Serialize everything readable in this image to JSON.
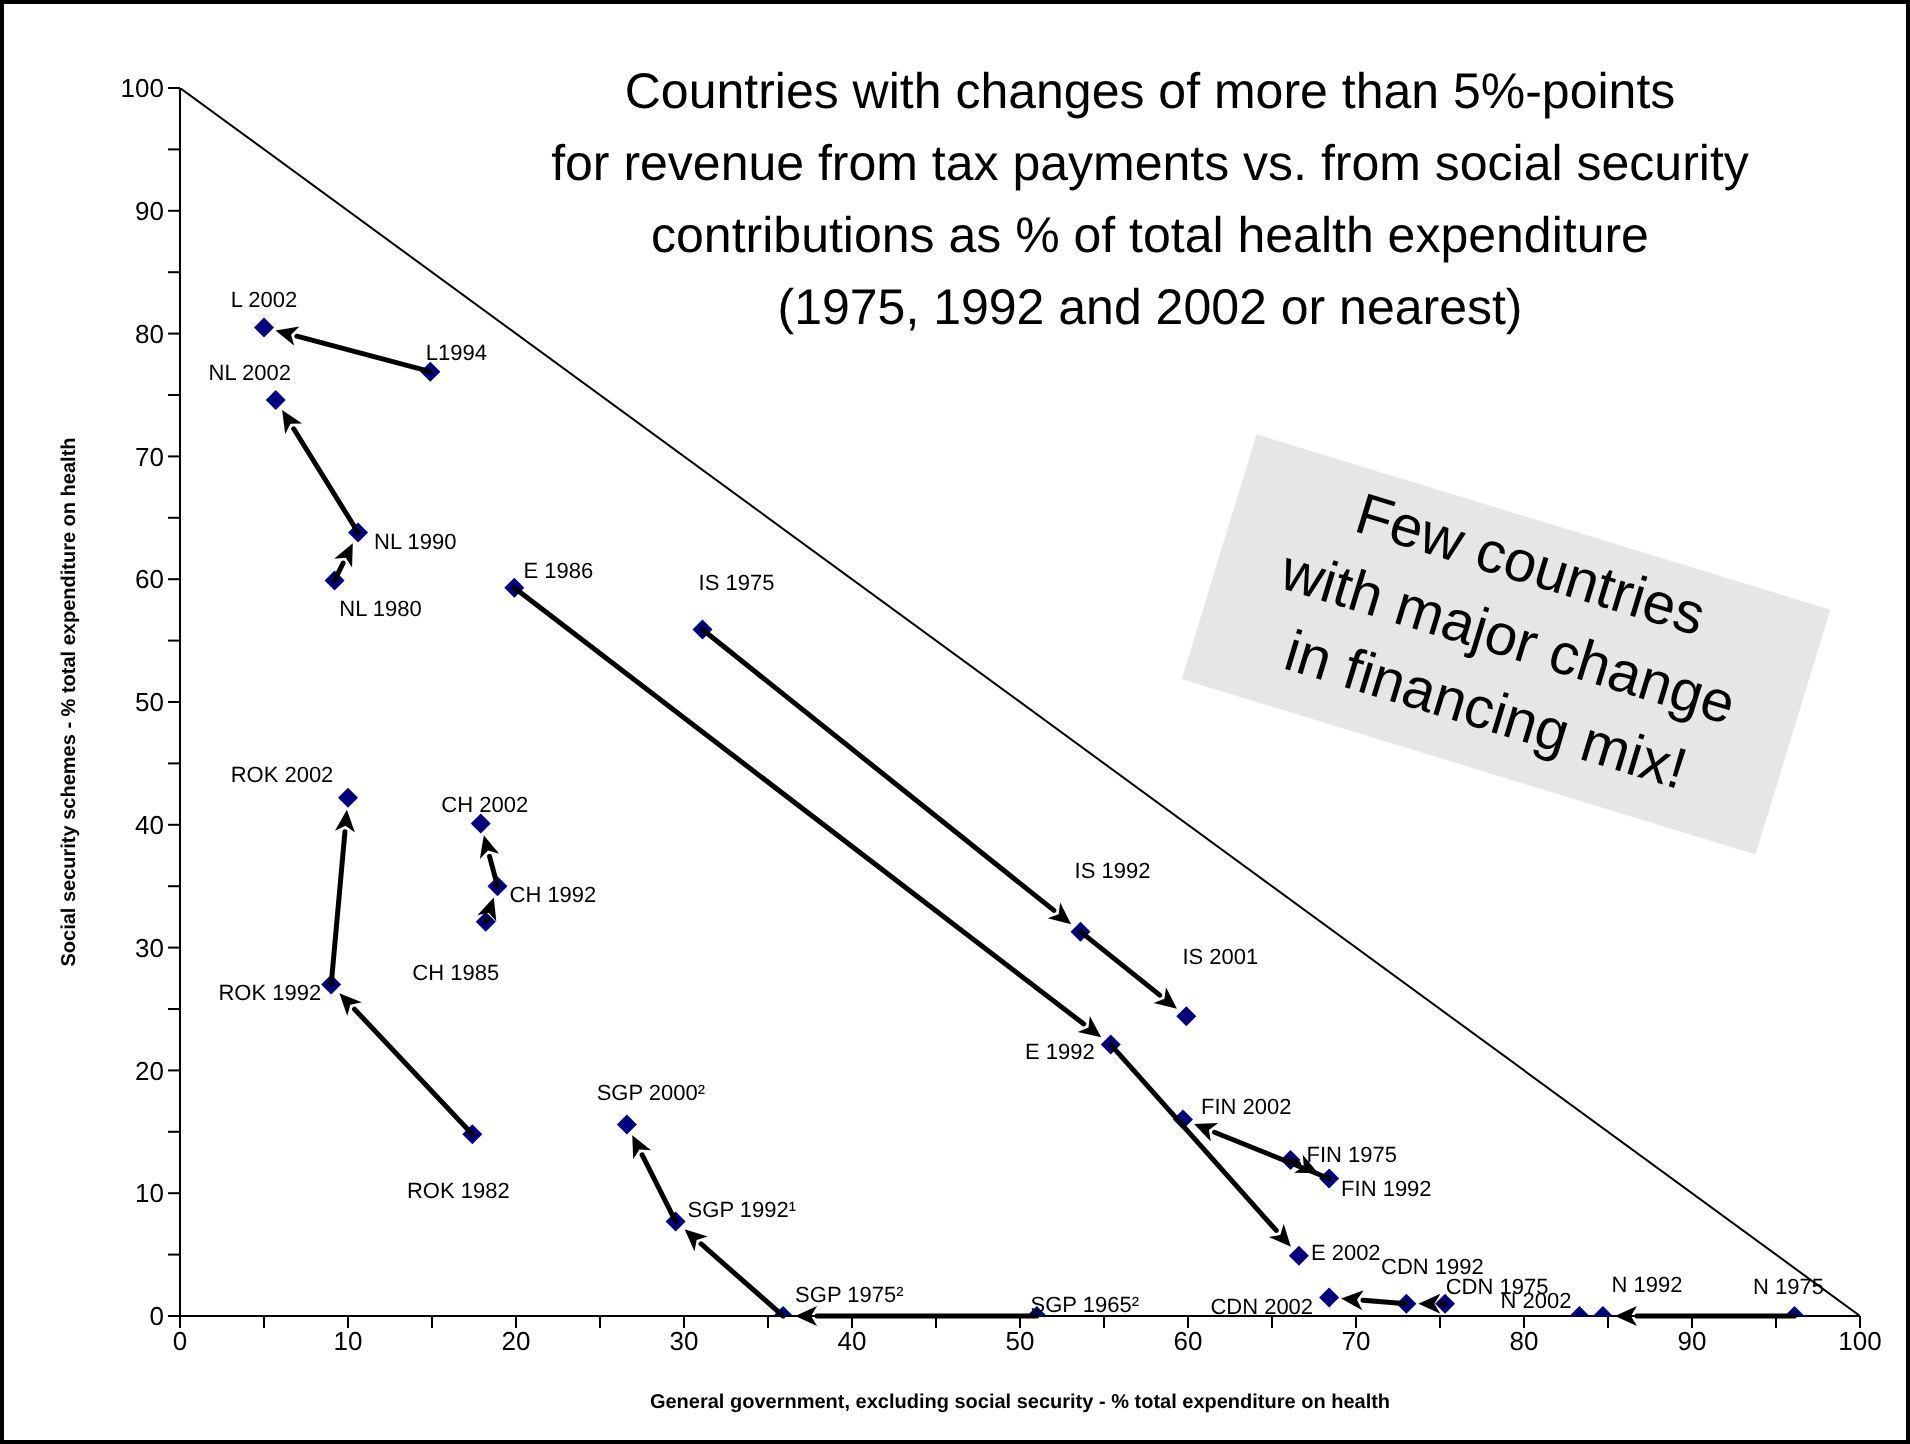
{
  "chart_data": {
    "type": "scatter",
    "title": "Countries with changes of more than 5%-points\nfor revenue from tax payments vs. from social security\ncontributions as % of total health expenditure\n(1975, 1992 and 2002 or nearest)",
    "xlabel": "General government, excluding social security - % total expenditure on health",
    "ylabel": "Social security schemes - % total expenditure on health",
    "xlim": [
      0,
      100
    ],
    "ylim": [
      0,
      100
    ],
    "xticks": [
      0,
      {
        "value": 5,
        "label": null
      },
      10,
      {
        "value": 15,
        "label": null
      },
      20,
      {
        "value": 25,
        "label": null
      },
      30,
      {
        "value": 35,
        "label": null
      },
      40,
      {
        "value": 45,
        "label": null
      },
      50,
      {
        "value": 55,
        "label": null
      },
      60,
      {
        "value": 65,
        "label": null
      },
      70,
      {
        "value": 75,
        "label": null
      },
      80,
      {
        "value": 85,
        "label": null
      },
      90,
      {
        "value": 95,
        "label": null
      },
      100
    ],
    "yticks": [
      0,
      {
        "value": 5,
        "label": null
      },
      10,
      {
        "value": 15,
        "label": null
      },
      20,
      {
        "value": 25,
        "label": null
      },
      30,
      {
        "value": 35,
        "label": null
      },
      40,
      {
        "value": 45,
        "label": null
      },
      50,
      {
        "value": 55,
        "label": null
      },
      60,
      {
        "value": 65,
        "label": null
      },
      70,
      {
        "value": 75,
        "label": null
      },
      80,
      {
        "value": 85,
        "label": null
      },
      90,
      {
        "value": 95,
        "label": null
      },
      100
    ],
    "marker": "diamond",
    "annotations": [
      "Few countries\nwith major change\nin financing mix!"
    ],
    "series": [
      {
        "type": "line",
        "color": "#000000",
        "marker": "none",
        "x": [
          0,
          100
        ],
        "values": [
          100,
          0
        ]
      },
      {
        "color": "#000080",
        "x": [
          14.9,
          5.0
        ],
        "values": [
          76.9,
          80.5
        ],
        "value_labels": [
          "L1994",
          "L 2002"
        ]
      },
      {
        "color": "#000080",
        "x": [
          9.2,
          10.6,
          5.7
        ],
        "values": [
          59.9,
          63.8,
          74.6
        ],
        "value_labels": [
          "NL 1980",
          "NL 1990",
          "NL 2002"
        ]
      },
      {
        "color": "#000080",
        "x": [
          19.9,
          55.4,
          66.6
        ],
        "values": [
          59.3,
          22.1,
          4.9
        ],
        "value_labels": [
          "E 1986",
          "E 1992",
          "E 2002"
        ]
      },
      {
        "color": "#000080",
        "x": [
          31.1,
          53.6,
          59.9
        ],
        "values": [
          55.9,
          31.3,
          24.4
        ],
        "value_labels": [
          "IS 1975",
          "IS 1992",
          "IS 2001"
        ]
      },
      {
        "color": "#000080",
        "x": [
          17.4,
          9.0,
          10.0
        ],
        "values": [
          14.8,
          27.0,
          42.2
        ],
        "value_labels": [
          "ROK 1982",
          "ROK 1992",
          "ROK 2002"
        ]
      },
      {
        "color": "#000080",
        "x": [
          18.2,
          18.9,
          17.9
        ],
        "values": [
          32.1,
          35.0,
          40.1
        ],
        "value_labels": [
          "CH 1985",
          "CH 1992",
          "CH 2002"
        ]
      },
      {
        "color": "#000080",
        "x": [
          51.0,
          35.9,
          29.5,
          26.6
        ],
        "values": [
          0,
          0,
          7.7,
          15.6
        ],
        "value_labels": [
          "SGP 1965²",
          "SGP 1975²",
          "SGP 1992¹",
          "SGP 2000²"
        ]
      },
      {
        "color": "#000080",
        "x": [
          66.1,
          68.4,
          59.7
        ],
        "values": [
          12.7,
          11.2,
          16.0
        ],
        "value_labels": [
          "FIN 1975",
          "FIN 1992",
          "FIN 2002"
        ]
      },
      {
        "color": "#000080",
        "x": [
          75.3,
          73.0,
          68.4
        ],
        "values": [
          1.0,
          1.0,
          1.5
        ],
        "value_labels": [
          "CDN 1975",
          "CDN 1992",
          "CDN 2002"
        ]
      },
      {
        "color": "#000080",
        "x": [
          96.1,
          84.7,
          83.3
        ],
        "values": [
          0,
          0,
          0
        ],
        "value_labels": [
          "N 1975",
          "N 1992",
          "N 2002"
        ]
      }
    ]
  }
}
